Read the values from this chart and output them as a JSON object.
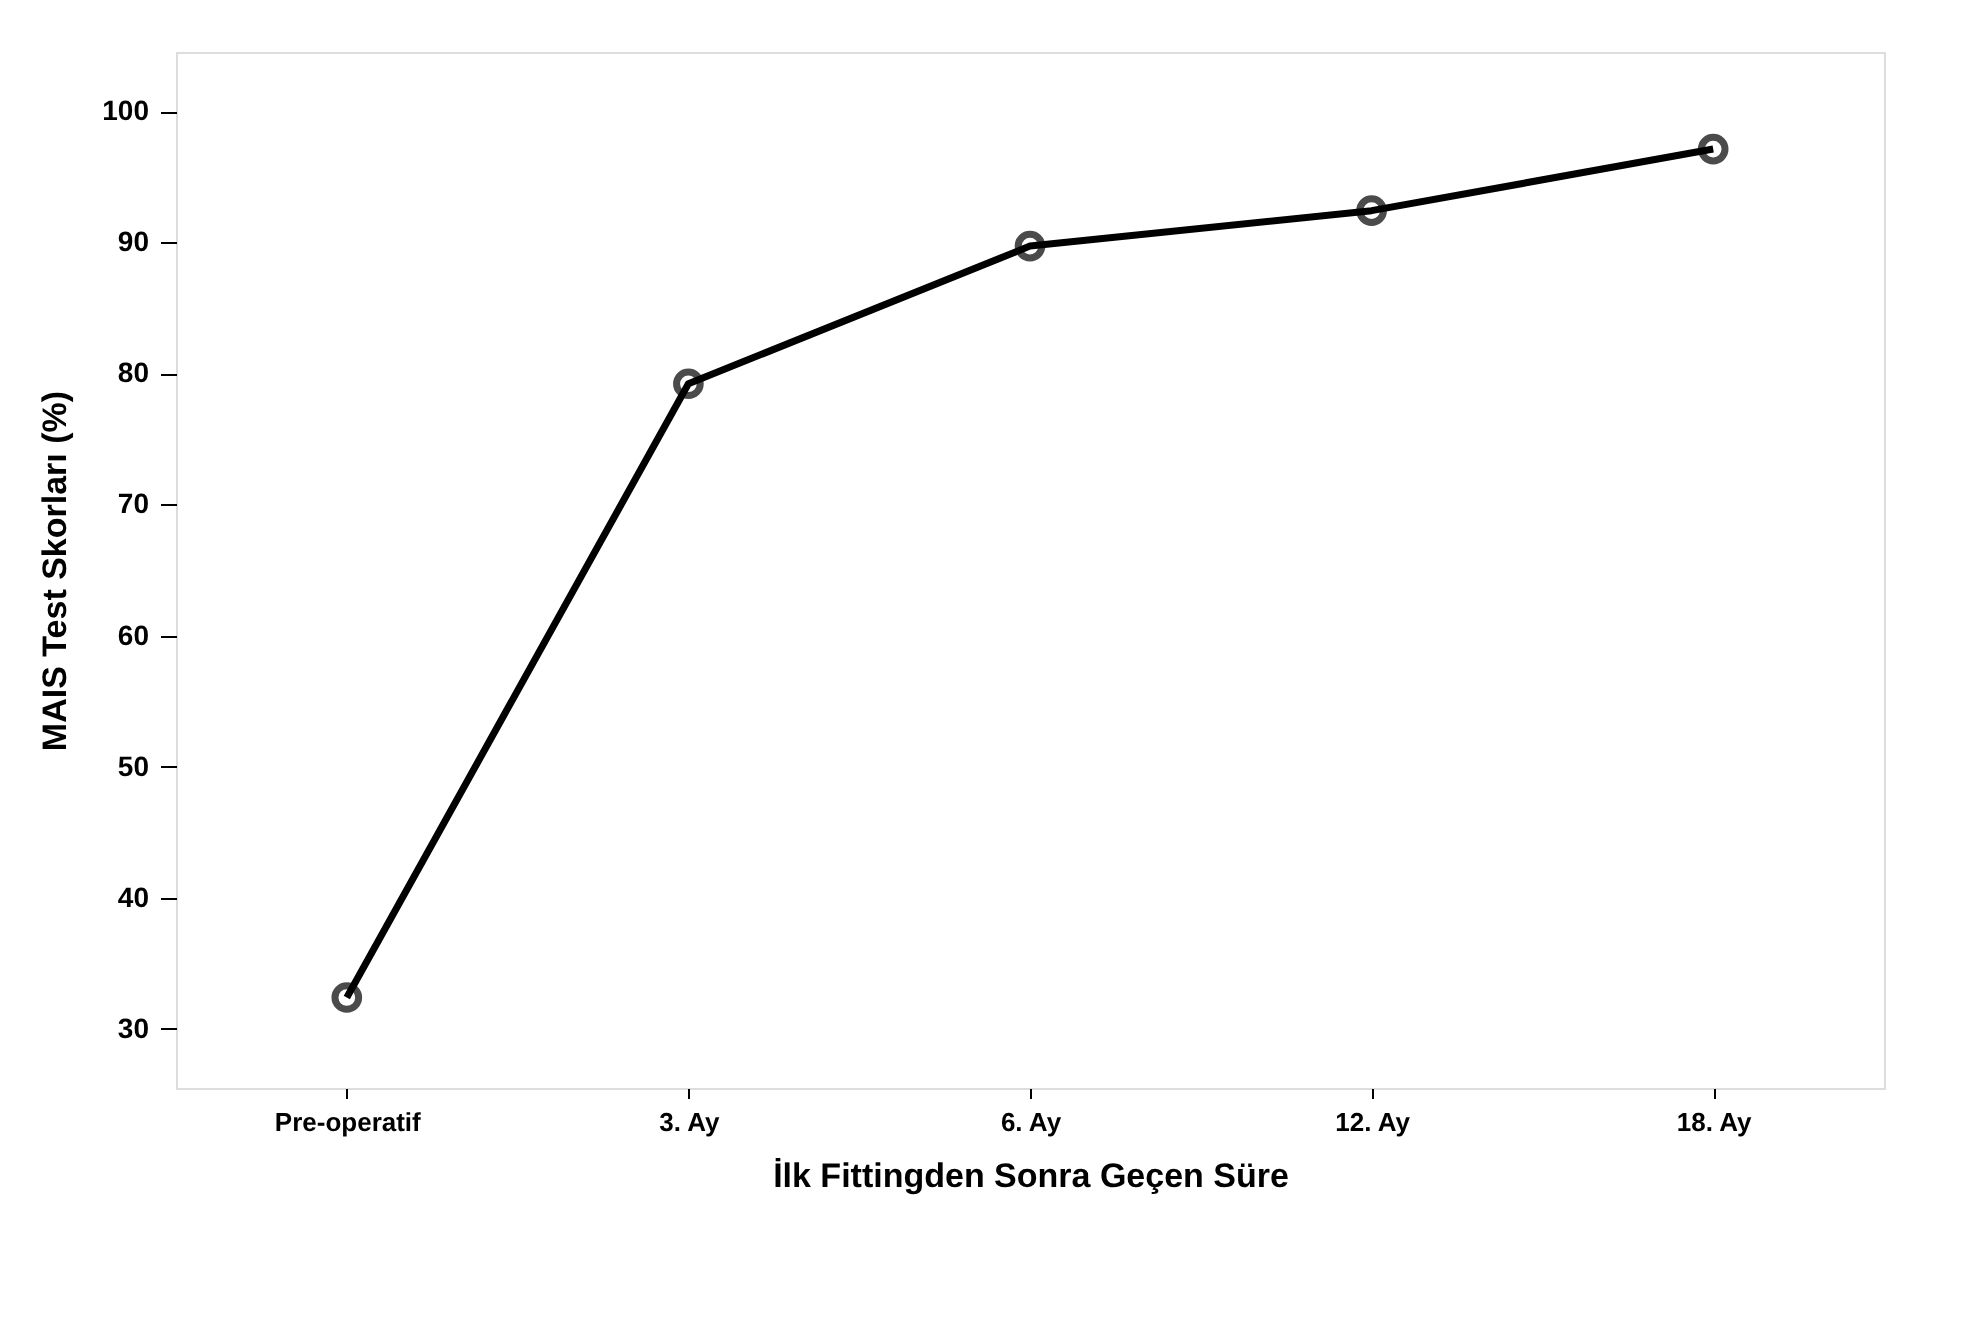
{
  "chart_data": {
    "type": "line",
    "xlabel": "İlk Fittingden Sonra Geçen Süre",
    "ylabel": "MAIS Test Skorları (%)",
    "categories": [
      "Pre-operatif",
      "3. Ay",
      "6. Ay",
      "12. Ay",
      "18. Ay"
    ],
    "series": [
      {
        "color": "#000000",
        "values": [
          32.4,
          79.2,
          89.7,
          92.4,
          97.1
        ]
      }
    ],
    "ylim": [
      25.5,
      104.5
    ],
    "yticks": [
      30,
      40,
      50,
      60,
      70,
      80,
      90,
      100
    ],
    "grid": false,
    "legend": false,
    "marker": "circle",
    "line_style": "solid"
  }
}
